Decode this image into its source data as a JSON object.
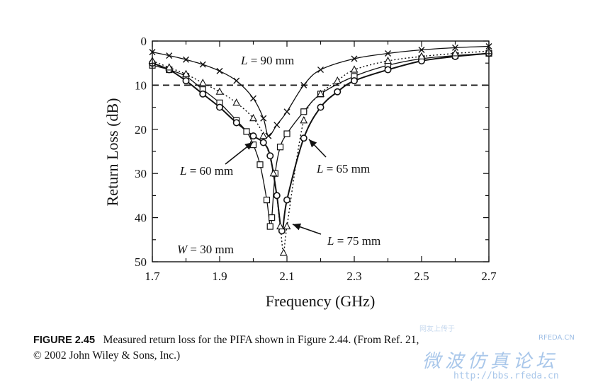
{
  "chart_data": {
    "type": "line",
    "xlabel": "Frequency (GHz)",
    "ylabel": "Return Loss (dB)",
    "xlim": [
      1.7,
      2.7
    ],
    "ylim": [
      0,
      50
    ],
    "y_inverted": true,
    "xticks": [
      1.7,
      1.9,
      2.1,
      2.3,
      2.5,
      2.7
    ],
    "xtick_labels": [
      "1.7",
      "1.9",
      "2.1",
      "2.3",
      "2.5",
      "2.7"
    ],
    "yticks": [
      0,
      10,
      20,
      30,
      40,
      50
    ],
    "ytick_labels": [
      "0",
      "10",
      "20",
      "30",
      "40",
      "50"
    ],
    "reference_line": {
      "y": 10,
      "style": "dashed"
    },
    "grid": false,
    "series": [
      {
        "name": "L = 90 mm",
        "marker": "x",
        "line": "solid",
        "x": [
          1.7,
          1.75,
          1.8,
          1.85,
          1.9,
          1.95,
          2.0,
          2.03,
          2.045,
          2.07,
          2.1,
          2.15,
          2.2,
          2.3,
          2.4,
          2.5,
          2.6,
          2.7
        ],
        "y": [
          2.5,
          3.3,
          4.2,
          5.3,
          6.8,
          9.0,
          13.0,
          17.5,
          21.5,
          19.0,
          16.0,
          10.0,
          6.5,
          4.0,
          2.8,
          2.0,
          1.5,
          1.2
        ]
      },
      {
        "name": "L = 60 mm",
        "marker": "square",
        "line": "solid",
        "x": [
          1.7,
          1.75,
          1.8,
          1.85,
          1.9,
          1.95,
          1.98,
          2.0,
          2.02,
          2.04,
          2.05,
          2.055,
          2.065,
          2.08,
          2.1,
          2.15,
          2.2,
          2.3,
          2.4,
          2.5,
          2.6,
          2.7
        ],
        "y": [
          5.5,
          6.5,
          8.0,
          11.0,
          14.0,
          18.0,
          20.5,
          23.5,
          28.0,
          36.0,
          42.0,
          40.0,
          30.0,
          24.0,
          21.0,
          16.0,
          12.0,
          8.0,
          5.5,
          4.0,
          3.3,
          2.8
        ]
      },
      {
        "name": "L = 65 mm",
        "marker": "circle",
        "line": "solid",
        "x": [
          1.7,
          1.75,
          1.8,
          1.85,
          1.9,
          1.95,
          2.0,
          2.03,
          2.05,
          2.07,
          2.085,
          2.1,
          2.15,
          2.2,
          2.25,
          2.3,
          2.4,
          2.5,
          2.6,
          2.7
        ],
        "y": [
          5.0,
          6.5,
          9.0,
          12.0,
          15.0,
          18.5,
          21.5,
          23.0,
          26.0,
          35.0,
          43.0,
          36.0,
          22.0,
          15.0,
          11.5,
          9.0,
          6.5,
          4.5,
          3.5,
          2.8
        ]
      },
      {
        "name": "L = 75 mm",
        "marker": "triangle",
        "line": "dotted",
        "x": [
          1.7,
          1.75,
          1.8,
          1.85,
          1.9,
          1.95,
          2.0,
          2.03,
          2.06,
          2.08,
          2.09,
          2.1,
          2.15,
          2.2,
          2.25,
          2.3,
          2.4,
          2.5,
          2.6,
          2.7
        ],
        "y": [
          4.5,
          6.0,
          7.5,
          9.5,
          11.5,
          14.0,
          17.5,
          21.5,
          30.0,
          42.0,
          48.0,
          42.0,
          18.0,
          12.0,
          9.0,
          6.5,
          4.5,
          3.5,
          2.8,
          2.3
        ]
      }
    ],
    "annotations": [
      {
        "text": "L = 90 mm"
      },
      {
        "text": "L = 60 mm"
      },
      {
        "text": "L = 65 mm"
      },
      {
        "text": "L = 75 mm"
      },
      {
        "text": "W = 30 mm"
      }
    ]
  },
  "caption": {
    "figure_label": "FIGURE 2.45",
    "line1": "Measured return loss for the PIFA shown in Figure 2.44. (From Ref. 21,",
    "line2": "© 2002 John Wiley & Sons, Inc.)"
  },
  "watermark": {
    "chinese": "微波仿真论坛",
    "url": "http://bbs.rfeda.cn",
    "small": "网友上传于",
    "brand": "RFEDA.CN"
  }
}
